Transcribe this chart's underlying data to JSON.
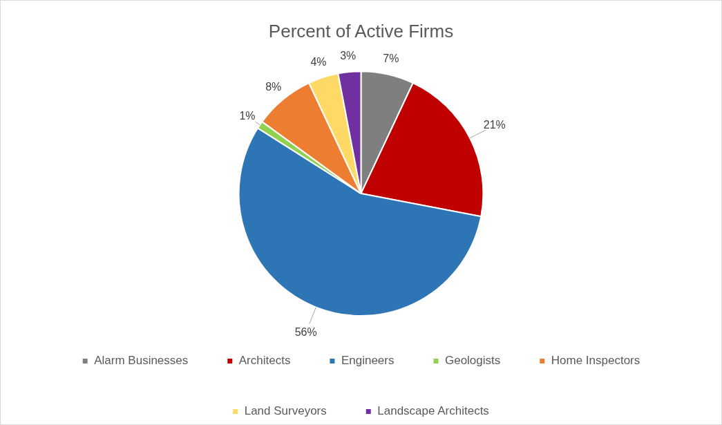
{
  "chart_data": {
    "type": "pie",
    "title": "Percent of Active Firms",
    "categories": [
      "Alarm Businesses",
      "Architects",
      "Engineers",
      "Geologists",
      "Home Inspectors",
      "Land Surveyors",
      "Landscape Architects"
    ],
    "values": [
      7,
      21,
      56,
      1,
      8,
      4,
      3
    ],
    "value_labels": [
      "7%",
      "21%",
      "56%",
      "1%",
      "8%",
      "4%",
      "3%"
    ],
    "colors": [
      "#7f7f7f",
      "#c00000",
      "#2e75b6",
      "#92d050",
      "#ed7d31",
      "#ffd966",
      "#7030a0"
    ],
    "legend": "bottom"
  }
}
